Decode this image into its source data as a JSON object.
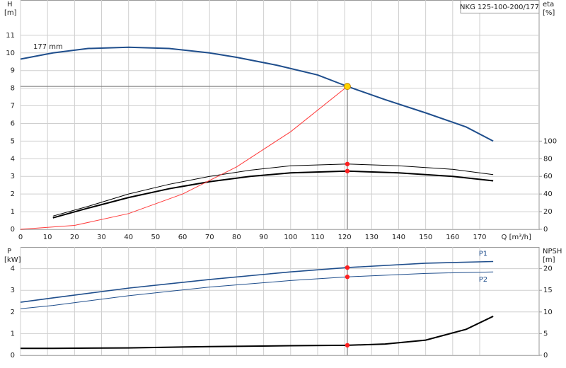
{
  "chart_data": [
    {
      "type": "line",
      "title": "NKG 125-100-200/177",
      "annotation": "177 mm",
      "ylabel": "H",
      "yunit": "[m]",
      "y2label": "eta",
      "y2unit": "[%]",
      "xlabel": "Q [m³/h]",
      "xlim": [
        0,
        192
      ],
      "xticks": [
        0,
        10,
        20,
        30,
        40,
        50,
        60,
        70,
        80,
        90,
        100,
        110,
        120,
        130,
        140,
        150,
        160,
        170
      ],
      "ylim": [
        0,
        13
      ],
      "yticks": [
        0,
        1,
        2,
        3,
        4,
        5,
        6,
        7,
        8,
        9,
        10,
        11
      ],
      "y2lim": [
        0,
        260
      ],
      "y2ticks": [
        0,
        20,
        40,
        60,
        80,
        100
      ],
      "grid": true,
      "series": [
        {
          "color": "#1f4e8c",
          "width": 2,
          "x": [
            0,
            12,
            25,
            40,
            55,
            70,
            80,
            95,
            110,
            121,
            135,
            150,
            165,
            175
          ],
          "values": [
            9.65,
            10.0,
            10.25,
            10.32,
            10.25,
            10.0,
            9.75,
            9.3,
            8.75,
            8.1,
            7.35,
            6.6,
            5.8,
            5.0
          ]
        },
        {
          "color": "#000000",
          "width": 1,
          "axis": "y2",
          "x": [
            12,
            25,
            40,
            55,
            70,
            85,
            100,
            121,
            140,
            160,
            175
          ],
          "values": [
            15,
            26,
            40,
            51,
            60,
            67,
            72,
            74,
            72,
            68,
            62
          ]
        },
        {
          "color": "#000000",
          "width": 2,
          "axis": "y2",
          "x": [
            12,
            25,
            40,
            55,
            70,
            85,
            100,
            121,
            140,
            160,
            175
          ],
          "values": [
            13,
            24,
            36,
            46,
            54,
            60,
            64,
            66,
            64,
            60,
            55
          ]
        },
        {
          "color": "#ff3b3b",
          "width": 1,
          "x": [
            0,
            20,
            40,
            60,
            80,
            100,
            121
          ],
          "values": [
            0,
            0.22,
            0.89,
            2.0,
            3.54,
            5.53,
            8.1
          ]
        }
      ],
      "operating_point": {
        "x": 121,
        "y": 8.1,
        "color": "#ffd400"
      },
      "points": [
        {
          "x": 121,
          "y": 74,
          "axis": "y2"
        },
        {
          "x": 121,
          "y": 66,
          "axis": "y2"
        }
      ],
      "point_color": "#ff2020"
    },
    {
      "type": "line",
      "ylabel": "P",
      "yunit": "[kW]",
      "y2label": "NPSH",
      "y2unit": "[m]",
      "xlim": [
        0,
        192
      ],
      "xticks": [
        0,
        10,
        20,
        30,
        40,
        50,
        60,
        70,
        80,
        90,
        100,
        110,
        120,
        130,
        140,
        150,
        160,
        170
      ],
      "xtick_labels": false,
      "ylim": [
        0,
        5
      ],
      "yticks": [
        0,
        1,
        2,
        3,
        4
      ],
      "y2lim": [
        0,
        25
      ],
      "y2ticks": [
        0,
        5,
        10,
        15,
        20
      ],
      "grid": true,
      "series": [
        {
          "name": "P1",
          "color": "#1f4e8c",
          "width": 1.6,
          "x": [
            0,
            12,
            40,
            70,
            100,
            121,
            150,
            175
          ],
          "values": [
            2.45,
            2.65,
            3.1,
            3.5,
            3.85,
            4.05,
            4.25,
            4.33
          ]
        },
        {
          "name": "P2",
          "color": "#1f4e8c",
          "width": 1,
          "x": [
            0,
            12,
            40,
            70,
            100,
            121,
            150,
            175
          ],
          "values": [
            2.15,
            2.3,
            2.75,
            3.15,
            3.45,
            3.62,
            3.78,
            3.85
          ]
        },
        {
          "color": "#000000",
          "width": 2,
          "axis": "y2",
          "x": [
            0,
            12,
            40,
            70,
            100,
            121,
            135,
            150,
            165,
            175
          ],
          "values": [
            1.6,
            1.6,
            1.7,
            2.0,
            2.2,
            2.3,
            2.6,
            3.5,
            6.0,
            9.0
          ]
        }
      ],
      "operating_x": 121,
      "points": [
        {
          "x": 121,
          "y": 4.05
        },
        {
          "x": 121,
          "y": 3.62
        },
        {
          "x": 121,
          "y": 2.3,
          "axis": "y2"
        }
      ],
      "point_color": "#ff2020"
    }
  ]
}
